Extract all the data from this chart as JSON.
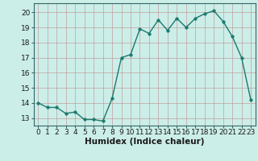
{
  "x": [
    0,
    1,
    2,
    3,
    4,
    5,
    6,
    7,
    8,
    9,
    10,
    11,
    12,
    13,
    14,
    15,
    16,
    17,
    18,
    19,
    20,
    21,
    22,
    23
  ],
  "y": [
    14.0,
    13.7,
    13.7,
    13.3,
    13.4,
    12.9,
    12.9,
    12.8,
    14.3,
    17.0,
    17.2,
    18.9,
    18.6,
    19.5,
    18.8,
    19.6,
    19.0,
    19.6,
    19.9,
    20.1,
    19.4,
    18.4,
    17.0,
    14.2
  ],
  "line_color": "#1a7a6e",
  "marker": "o",
  "marker_size": 2.5,
  "bg_color": "#cceee8",
  "grid_color": "#c0a0a0",
  "xlabel": "Humidex (Indice chaleur)",
  "xlim": [
    -0.5,
    23.5
  ],
  "ylim": [
    12.5,
    20.6
  ],
  "yticks": [
    13,
    14,
    15,
    16,
    17,
    18,
    19,
    20
  ],
  "xticks": [
    0,
    1,
    2,
    3,
    4,
    5,
    6,
    7,
    8,
    9,
    10,
    11,
    12,
    13,
    14,
    15,
    16,
    17,
    18,
    19,
    20,
    21,
    22,
    23
  ],
  "tick_fontsize": 6.5,
  "xlabel_fontsize": 7.5,
  "spine_color": "#336666",
  "tick_color": "#336666"
}
